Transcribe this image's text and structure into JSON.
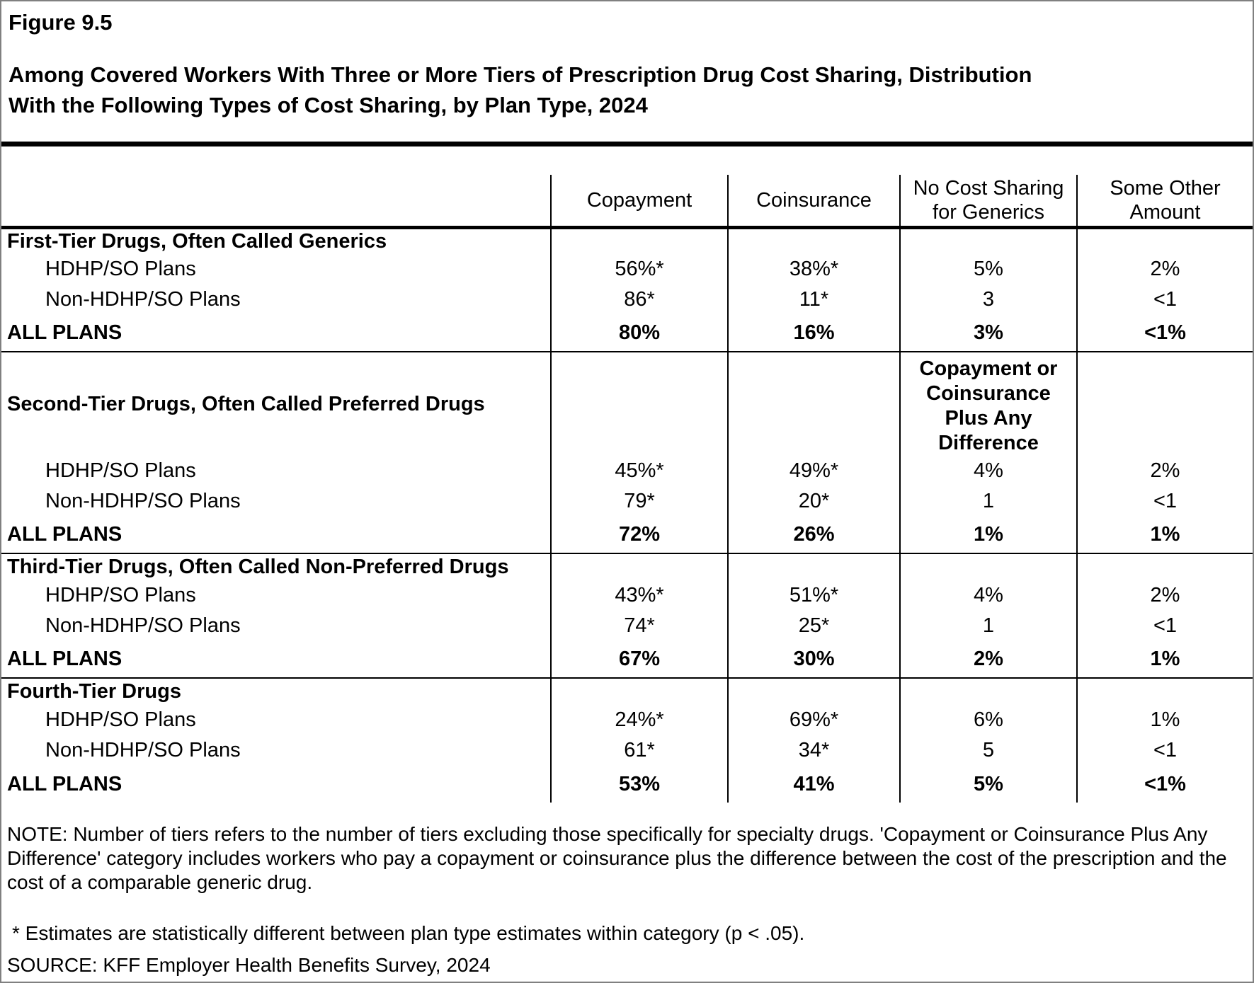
{
  "page": {
    "figure_label": "Figure 9.5",
    "title_display": "Among Covered Workers With Three or More Tiers of Prescription Drug Cost Sharing, Distribution\nWith the Following Types of Cost Sharing, by Plan Type, 2024"
  },
  "chart_data": {
    "type": "table",
    "title": "Among Covered Workers With Three or More Tiers of Prescription Drug Cost Sharing, Distribution With the Following Types of Cost Sharing, by Plan Type, 2024",
    "columns": [
      "Copayment",
      "Coinsurance",
      "No Cost Sharing\nfor Generics",
      "Some Other\nAmount"
    ],
    "columns_clean": [
      "Copayment",
      "Coinsurance",
      "No Cost Sharing for Generics",
      "Some Other Amount"
    ],
    "sections": [
      {
        "title": "First-Tier Drugs, Often Called Generics",
        "rows": [
          {
            "label": "HDHP/SO Plans",
            "bold": false,
            "values": [
              "56%*",
              "38%*",
              "5%",
              "2%"
            ]
          },
          {
            "label": "Non-HDHP/SO Plans",
            "bold": false,
            "values": [
              "86*",
              "11*",
              "3",
              "<1"
            ]
          },
          {
            "label": "ALL PLANS",
            "bold": true,
            "values": [
              "80%",
              "16%",
              "3%",
              "<1%"
            ]
          }
        ]
      },
      {
        "title": "Second-Tier Drugs, Often Called Preferred Drugs",
        "col3_header": "Copayment or\nCoinsurance\nPlus Any\nDifference",
        "col3_header_clean": "Copayment or Coinsurance Plus Any Difference",
        "rows": [
          {
            "label": "HDHP/SO Plans",
            "bold": false,
            "values": [
              "45%*",
              "49%*",
              "4%",
              "2%"
            ]
          },
          {
            "label": "Non-HDHP/SO Plans",
            "bold": false,
            "values": [
              "79*",
              "20*",
              "1",
              "<1"
            ]
          },
          {
            "label": "ALL PLANS",
            "bold": true,
            "values": [
              "72%",
              "26%",
              "1%",
              "1%"
            ]
          }
        ]
      },
      {
        "title": "Third-Tier Drugs, Often Called Non-Preferred Drugs",
        "rows": [
          {
            "label": "HDHP/SO Plans",
            "bold": false,
            "values": [
              "43%*",
              "51%*",
              "4%",
              "2%"
            ]
          },
          {
            "label": "Non-HDHP/SO Plans",
            "bold": false,
            "values": [
              "74*",
              "25*",
              "1",
              "<1"
            ]
          },
          {
            "label": "ALL PLANS",
            "bold": true,
            "values": [
              "67%",
              "30%",
              "2%",
              "1%"
            ]
          }
        ]
      },
      {
        "title": "Fourth-Tier Drugs",
        "rows": [
          {
            "label": "HDHP/SO Plans",
            "bold": false,
            "values": [
              "24%*",
              "69%*",
              "6%",
              "1%"
            ]
          },
          {
            "label": "Non-HDHP/SO Plans",
            "bold": false,
            "values": [
              "61*",
              "34*",
              "5",
              "<1"
            ]
          },
          {
            "label": "ALL PLANS",
            "bold": true,
            "values": [
              "53%",
              "41%",
              "5%",
              "<1%"
            ]
          }
        ]
      }
    ]
  },
  "notes": {
    "note": "NOTE: Number of tiers refers to the number of tiers excluding those specifically for specialty drugs. 'Copayment or Coinsurance Plus Any Difference' category includes workers who pay a copayment or coinsurance plus the difference between the cost of the prescription and the cost of a comparable generic drug.",
    "asterisk": "* Estimates are statistically different between plan type estimates within category (p < .05).",
    "source": "SOURCE: KFF Employer Health Benefits Survey, 2024"
  }
}
